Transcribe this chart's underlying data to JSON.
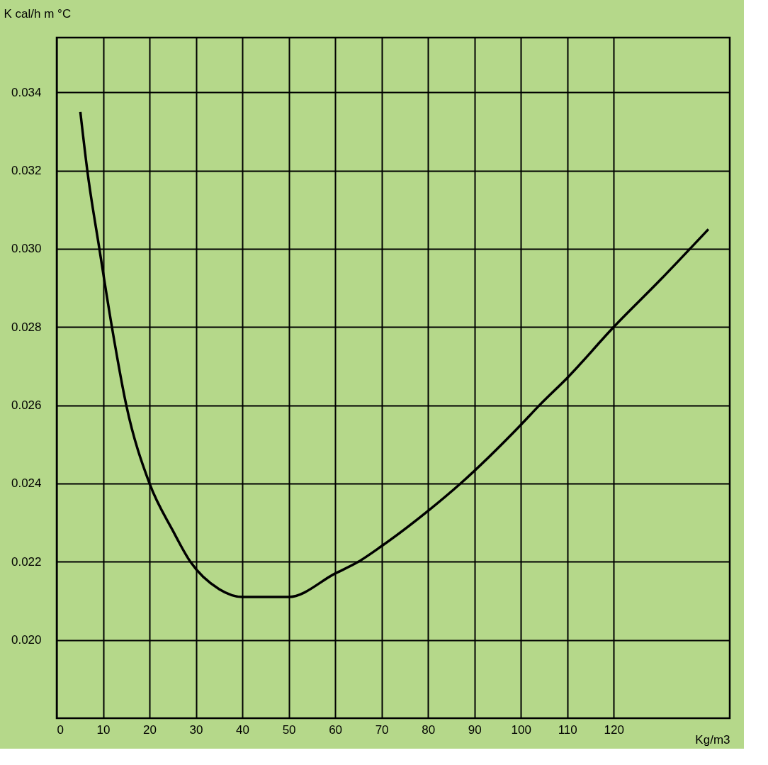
{
  "chart_data": {
    "type": "line",
    "xlabel": "Kg/m3",
    "ylabel": "K cal/h m °C",
    "x": [
      5.1,
      6.6,
      9.2,
      11.9,
      15,
      20,
      25,
      28.8,
      35,
      40,
      45,
      50,
      60,
      65,
      70,
      80,
      87,
      100,
      104,
      110,
      120,
      130,
      140.4
    ],
    "series": [
      {
        "color": "#000000",
        "values": [
          0.0335,
          0.032,
          0.03,
          0.028,
          0.026,
          0.024,
          0.0228,
          0.022,
          0.0213,
          0.0211,
          0.0211,
          0.0211,
          0.0217,
          0.022,
          0.0224,
          0.0233,
          0.024,
          0.0255,
          0.026,
          0.0267,
          0.028,
          0.0292,
          0.0305
        ]
      }
    ],
    "xlim": [
      0,
      145
    ],
    "xticks": [
      0,
      10,
      20,
      30,
      40,
      50,
      60,
      70,
      80,
      90,
      100,
      110,
      120
    ],
    "ylim": [
      0.018,
      0.0354
    ],
    "yticks": [
      {
        "value": 0.02,
        "label": "0.020"
      },
      {
        "value": 0.022,
        "label": "0.022"
      },
      {
        "value": 0.024,
        "label": "0.024"
      },
      {
        "value": 0.026,
        "label": "0.026"
      },
      {
        "value": 0.028,
        "label": "0.028"
      },
      {
        "value": 0.03,
        "label": "0.030"
      },
      {
        "value": 0.032,
        "label": "0.032"
      },
      {
        "value": 0.034,
        "label": "0.034"
      }
    ],
    "grid": true,
    "legend": false,
    "marker": "none",
    "line_style": "solid"
  }
}
